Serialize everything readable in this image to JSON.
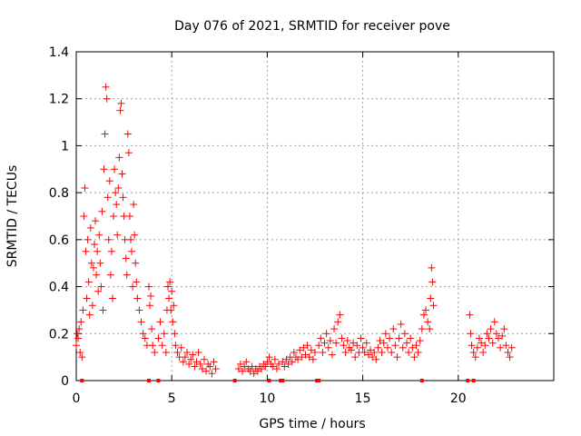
{
  "chart_data": {
    "type": "scatter",
    "title": "Day 076 of 2021, SRMTID for receiver pove",
    "xlabel": "GPS time / hours",
    "ylabel": "SRMTID / TECUs",
    "xlim": [
      0,
      25
    ],
    "ylim": [
      0,
      1.4
    ],
    "xticks": [
      0,
      5,
      10,
      15,
      20
    ],
    "xtick_labels": [
      "0",
      "5",
      "10",
      "15",
      "20"
    ],
    "yticks": [
      0,
      0.2,
      0.4,
      0.6,
      0.8,
      1.0,
      1.2,
      1.4
    ],
    "ytick_labels": [
      "0",
      "0.2",
      "0.4",
      "0.6",
      "0.8",
      "1",
      "1.2",
      "1.4"
    ],
    "grid": true,
    "marker": "+",
    "color": "#ff0000",
    "series": [
      {
        "name": "SRMTID",
        "points": [
          [
            0.0,
            0.15
          ],
          [
            0.05,
            0.2
          ],
          [
            0.1,
            0.18
          ],
          [
            0.15,
            0.22
          ],
          [
            0.2,
            0.12
          ],
          [
            0.25,
            0.25
          ],
          [
            0.3,
            0.1
          ],
          [
            0.35,
            0.3
          ],
          [
            0.4,
            0.7
          ],
          [
            0.45,
            0.82
          ],
          [
            0.5,
            0.55
          ],
          [
            0.55,
            0.35
          ],
          [
            0.6,
            0.6
          ],
          [
            0.65,
            0.42
          ],
          [
            0.7,
            0.28
          ],
          [
            0.75,
            0.65
          ],
          [
            0.8,
            0.5
          ],
          [
            0.85,
            0.32
          ],
          [
            0.9,
            0.48
          ],
          [
            0.95,
            0.58
          ],
          [
            1.0,
            0.68
          ],
          [
            1.05,
            0.45
          ],
          [
            1.1,
            0.55
          ],
          [
            1.15,
            0.38
          ],
          [
            1.2,
            0.62
          ],
          [
            1.25,
            0.5
          ],
          [
            1.3,
            0.4
          ],
          [
            1.35,
            0.72
          ],
          [
            1.4,
            0.3
          ],
          [
            1.45,
            0.9
          ],
          [
            1.5,
            1.05
          ],
          [
            1.55,
            1.25
          ],
          [
            1.6,
            1.2
          ],
          [
            1.65,
            0.78
          ],
          [
            1.7,
            0.6
          ],
          [
            1.75,
            0.85
          ],
          [
            1.8,
            0.45
          ],
          [
            1.85,
            0.55
          ],
          [
            1.9,
            0.35
          ],
          [
            1.95,
            0.7
          ],
          [
            2.0,
            0.9
          ],
          [
            2.05,
            0.8
          ],
          [
            2.1,
            0.75
          ],
          [
            2.15,
            0.62
          ],
          [
            2.2,
            0.82
          ],
          [
            2.25,
            0.95
          ],
          [
            2.3,
            1.15
          ],
          [
            2.35,
            1.18
          ],
          [
            2.4,
            0.88
          ],
          [
            2.45,
            0.78
          ],
          [
            2.5,
            0.7
          ],
          [
            2.55,
            0.6
          ],
          [
            2.6,
            0.52
          ],
          [
            2.65,
            0.45
          ],
          [
            2.7,
            1.05
          ],
          [
            2.75,
            0.97
          ],
          [
            2.8,
            0.7
          ],
          [
            2.85,
            0.6
          ],
          [
            2.9,
            0.55
          ],
          [
            2.95,
            0.4
          ],
          [
            3.0,
            0.75
          ],
          [
            3.05,
            0.62
          ],
          [
            3.1,
            0.5
          ],
          [
            3.15,
            0.42
          ],
          [
            3.2,
            0.35
          ],
          [
            3.3,
            0.3
          ],
          [
            3.4,
            0.25
          ],
          [
            3.5,
            0.2
          ],
          [
            3.6,
            0.18
          ],
          [
            3.7,
            0.15
          ],
          [
            3.8,
            0.4
          ],
          [
            3.85,
            0.32
          ],
          [
            3.9,
            0.36
          ],
          [
            3.95,
            0.22
          ],
          [
            4.0,
            0.15
          ],
          [
            4.1,
            0.12
          ],
          [
            4.3,
            0.18
          ],
          [
            4.4,
            0.25
          ],
          [
            4.5,
            0.15
          ],
          [
            4.6,
            0.2
          ],
          [
            4.7,
            0.12
          ],
          [
            4.75,
            0.3
          ],
          [
            4.8,
            0.4
          ],
          [
            4.85,
            0.35
          ],
          [
            4.9,
            0.42
          ],
          [
            4.95,
            0.3
          ],
          [
            5.0,
            0.38
          ],
          [
            5.05,
            0.25
          ],
          [
            5.1,
            0.32
          ],
          [
            5.15,
            0.2
          ],
          [
            5.2,
            0.15
          ],
          [
            5.3,
            0.12
          ],
          [
            5.4,
            0.1
          ],
          [
            5.5,
            0.14
          ],
          [
            5.6,
            0.08
          ],
          [
            5.7,
            0.1
          ],
          [
            5.8,
            0.12
          ],
          [
            5.9,
            0.07
          ],
          [
            6.0,
            0.09
          ],
          [
            6.1,
            0.11
          ],
          [
            6.2,
            0.06
          ],
          [
            6.3,
            0.08
          ],
          [
            6.4,
            0.12
          ],
          [
            6.5,
            0.07
          ],
          [
            6.6,
            0.05
          ],
          [
            6.7,
            0.09
          ],
          [
            6.8,
            0.04
          ],
          [
            6.9,
            0.07
          ],
          [
            7.0,
            0.06
          ],
          [
            7.1,
            0.03
          ],
          [
            7.2,
            0.08
          ],
          [
            7.3,
            0.05
          ],
          [
            8.5,
            0.05
          ],
          [
            8.6,
            0.07
          ],
          [
            8.7,
            0.04
          ],
          [
            8.8,
            0.06
          ],
          [
            8.9,
            0.08
          ],
          [
            9.0,
            0.05
          ],
          [
            9.1,
            0.04
          ],
          [
            9.2,
            0.06
          ],
          [
            9.3,
            0.03
          ],
          [
            9.4,
            0.05
          ],
          [
            9.5,
            0.04
          ],
          [
            9.6,
            0.06
          ],
          [
            9.7,
            0.05
          ],
          [
            9.8,
            0.07
          ],
          [
            9.9,
            0.06
          ],
          [
            10.0,
            0.08
          ],
          [
            10.1,
            0.1
          ],
          [
            10.2,
            0.07
          ],
          [
            10.3,
            0.06
          ],
          [
            10.4,
            0.09
          ],
          [
            10.5,
            0.05
          ],
          [
            10.6,
            0.07
          ],
          [
            10.8,
            0.08
          ],
          [
            10.9,
            0.06
          ],
          [
            11.0,
            0.09
          ],
          [
            11.1,
            0.07
          ],
          [
            11.2,
            0.1
          ],
          [
            11.3,
            0.08
          ],
          [
            11.4,
            0.12
          ],
          [
            11.5,
            0.1
          ],
          [
            11.6,
            0.09
          ],
          [
            11.7,
            0.13
          ],
          [
            11.8,
            0.1
          ],
          [
            11.9,
            0.14
          ],
          [
            12.0,
            0.11
          ],
          [
            12.1,
            0.15
          ],
          [
            12.2,
            0.1
          ],
          [
            12.3,
            0.13
          ],
          [
            12.4,
            0.09
          ],
          [
            12.5,
            0.12
          ],
          [
            12.7,
            0.15
          ],
          [
            12.8,
            0.18
          ],
          [
            12.9,
            0.12
          ],
          [
            13.0,
            0.16
          ],
          [
            13.1,
            0.2
          ],
          [
            13.2,
            0.14
          ],
          [
            13.3,
            0.17
          ],
          [
            13.4,
            0.11
          ],
          [
            13.5,
            0.22
          ],
          [
            13.6,
            0.16
          ],
          [
            13.7,
            0.25
          ],
          [
            13.8,
            0.28
          ],
          [
            13.9,
            0.18
          ],
          [
            14.0,
            0.15
          ],
          [
            14.1,
            0.12
          ],
          [
            14.2,
            0.17
          ],
          [
            14.3,
            0.14
          ],
          [
            14.4,
            0.13
          ],
          [
            14.5,
            0.16
          ],
          [
            14.6,
            0.1
          ],
          [
            14.7,
            0.15
          ],
          [
            14.8,
            0.12
          ],
          [
            14.9,
            0.18
          ],
          [
            15.0,
            0.14
          ],
          [
            15.1,
            0.12
          ],
          [
            15.2,
            0.16
          ],
          [
            15.3,
            0.11
          ],
          [
            15.4,
            0.13
          ],
          [
            15.5,
            0.1
          ],
          [
            15.6,
            0.12
          ],
          [
            15.7,
            0.09
          ],
          [
            15.8,
            0.14
          ],
          [
            15.9,
            0.17
          ],
          [
            16.0,
            0.12
          ],
          [
            16.1,
            0.16
          ],
          [
            16.2,
            0.2
          ],
          [
            16.3,
            0.14
          ],
          [
            16.4,
            0.18
          ],
          [
            16.5,
            0.12
          ],
          [
            16.6,
            0.22
          ],
          [
            16.7,
            0.15
          ],
          [
            16.8,
            0.1
          ],
          [
            16.9,
            0.18
          ],
          [
            17.0,
            0.24
          ],
          [
            17.1,
            0.14
          ],
          [
            17.2,
            0.2
          ],
          [
            17.3,
            0.16
          ],
          [
            17.4,
            0.12
          ],
          [
            17.5,
            0.18
          ],
          [
            17.6,
            0.14
          ],
          [
            17.7,
            0.1
          ],
          [
            17.8,
            0.15
          ],
          [
            17.9,
            0.12
          ],
          [
            18.0,
            0.17
          ],
          [
            18.1,
            0.22
          ],
          [
            18.2,
            0.28
          ],
          [
            18.3,
            0.3
          ],
          [
            18.4,
            0.25
          ],
          [
            18.5,
            0.22
          ],
          [
            18.55,
            0.35
          ],
          [
            18.6,
            0.48
          ],
          [
            18.65,
            0.42
          ],
          [
            18.7,
            0.32
          ],
          [
            20.6,
            0.28
          ],
          [
            20.65,
            0.2
          ],
          [
            20.7,
            0.15
          ],
          [
            20.8,
            0.12
          ],
          [
            20.9,
            0.1
          ],
          [
            21.0,
            0.14
          ],
          [
            21.1,
            0.18
          ],
          [
            21.2,
            0.16
          ],
          [
            21.3,
            0.12
          ],
          [
            21.4,
            0.15
          ],
          [
            21.5,
            0.2
          ],
          [
            21.6,
            0.18
          ],
          [
            21.7,
            0.22
          ],
          [
            21.8,
            0.16
          ],
          [
            21.9,
            0.25
          ],
          [
            22.0,
            0.2
          ],
          [
            22.1,
            0.18
          ],
          [
            22.2,
            0.14
          ],
          [
            22.3,
            0.19
          ],
          [
            22.4,
            0.22
          ],
          [
            22.5,
            0.15
          ],
          [
            22.6,
            0.12
          ],
          [
            22.7,
            0.1
          ],
          [
            22.8,
            0.14
          ]
        ],
        "gap_markers_x": [
          0.3,
          3.8,
          4.3,
          8.3,
          10.1,
          10.7,
          10.8,
          12.6,
          12.7,
          18.1,
          20.5,
          20.8
        ]
      }
    ]
  }
}
